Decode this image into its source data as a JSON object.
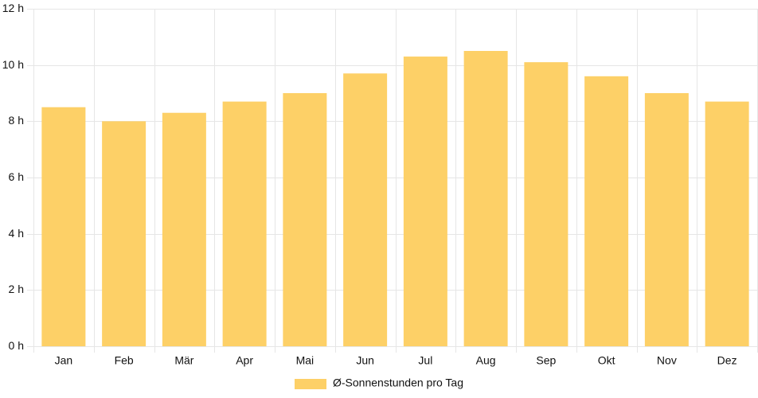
{
  "chart_data": {
    "type": "bar",
    "categories": [
      "Jan",
      "Feb",
      "Mär",
      "Apr",
      "Mai",
      "Jun",
      "Jul",
      "Aug",
      "Sep",
      "Okt",
      "Nov",
      "Dez"
    ],
    "series": [
      {
        "name": "Ø-Sonnenstunden pro Tag",
        "values": [
          8.5,
          8.0,
          8.3,
          8.7,
          9.0,
          9.7,
          10.3,
          10.5,
          10.1,
          9.6,
          9.0,
          8.7
        ],
        "color": "#fdd067"
      }
    ],
    "ylim": [
      0,
      12
    ],
    "yticks": [
      0,
      2,
      4,
      6,
      8,
      10,
      12
    ],
    "ytick_labels": [
      "0 h",
      "2 h",
      "4 h",
      "6 h",
      "8 h",
      "10 h",
      "12 h"
    ],
    "grid": true,
    "legend_position": "bottom",
    "grid_color": "#e6e6e6"
  }
}
